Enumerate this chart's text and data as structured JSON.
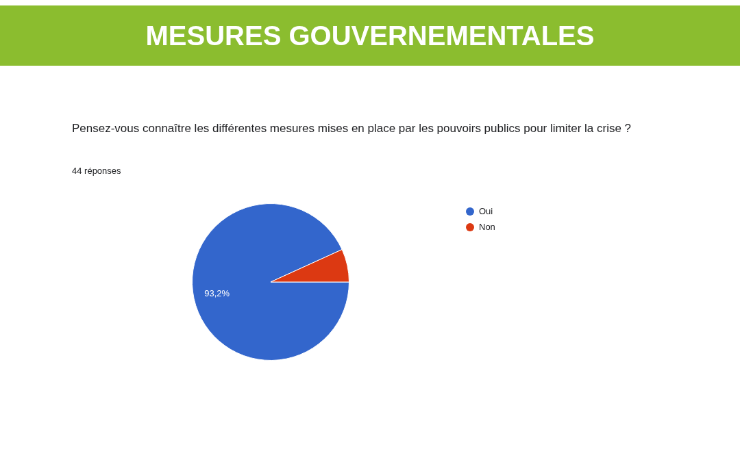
{
  "chart_data": {
    "type": "pie",
    "title": "MESURES GOUVERNEMENTALES",
    "subtitle": "Pensez-vous connaître les différentes mesures mises en place par les pouvoirs publics pour limiter la crise ?",
    "annotations": [
      "44 réponses"
    ],
    "categories": [
      "Oui",
      "Non"
    ],
    "values": [
      93.2,
      6.8
    ],
    "colors": [
      "#3366cc",
      "#dc3912"
    ],
    "value_labels": [
      "93,2%",
      null
    ],
    "legend": "right"
  }
}
